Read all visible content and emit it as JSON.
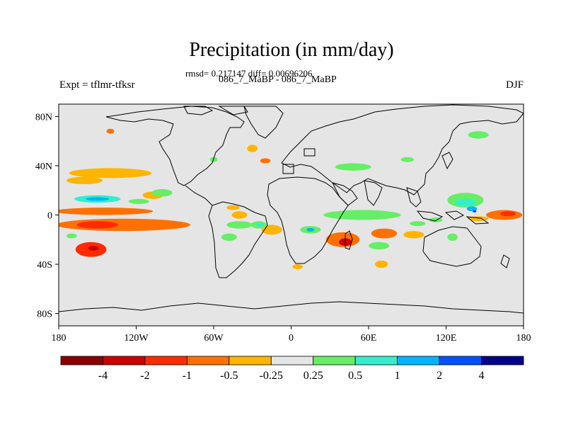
{
  "title": "Precipitation (in mm/day)",
  "subtitle": "rmsd= 0.217147 diff= 0.00696206",
  "case_label": "086_7_MaBP - 086_7_MaBP",
  "expt_label": "Expt = tflmr-tfksr",
  "season": "DJF",
  "map": {
    "projection": "cylindrical-equidistant",
    "lon_range": [
      -180,
      180
    ],
    "lat_range": [
      -90,
      90
    ],
    "y_ticks": [
      {
        "value": 80,
        "label": "80N"
      },
      {
        "value": 40,
        "label": "40N"
      },
      {
        "value": 0,
        "label": "0"
      },
      {
        "value": -40,
        "label": "40S"
      },
      {
        "value": -80,
        "label": "80S"
      }
    ],
    "x_ticks": [
      {
        "value": -180,
        "label": "180"
      },
      {
        "value": -120,
        "label": "120W"
      },
      {
        "value": -60,
        "label": "60W"
      },
      {
        "value": 0,
        "label": "0"
      },
      {
        "value": 60,
        "label": "60E"
      },
      {
        "value": 120,
        "label": "120E"
      },
      {
        "value": 180,
        "label": "180"
      }
    ],
    "background_color": "#e5e5e5"
  },
  "colorbar": {
    "colors": [
      "#8b0000",
      "#cc0000",
      "#ff2a00",
      "#ff7000",
      "#ffb400",
      "#e5e5e5",
      "#66ee66",
      "#33eecc",
      "#00b4ff",
      "#0050ff",
      "#00008b"
    ],
    "labels": [
      "-4",
      "-2",
      "-1",
      "-0.5",
      "-0.25",
      "0.25",
      "0.5",
      "1",
      "2",
      "4"
    ]
  },
  "chart_data": {
    "type": "heatmap",
    "variable": "Precipitation difference",
    "units": "mm/day",
    "levels": [
      -4,
      -2,
      -1,
      -0.5,
      -0.25,
      0.25,
      0.5,
      1,
      2,
      4
    ],
    "anomalies": [
      {
        "name": "north-pacific-dry-band",
        "lon": -140,
        "lat": 34,
        "dlon": 32,
        "dlat": 4,
        "level": -0.25
      },
      {
        "name": "north-pacific-dry-band-2",
        "lon": -160,
        "lat": 28,
        "dlon": 14,
        "dlat": 3,
        "level": -0.25
      },
      {
        "name": "east-pacific-dry-patch",
        "lon": -107,
        "lat": 16,
        "dlon": 8,
        "dlat": 3,
        "level": -0.25
      },
      {
        "name": "central-pacific-dry-band",
        "lon": -145,
        "lat": 3,
        "dlon": 38,
        "dlat": 3,
        "level": -0.5
      },
      {
        "name": "south-pacific-dry-band",
        "lon": -130,
        "lat": -8,
        "dlon": 52,
        "dlat": 5,
        "level": -0.5
      },
      {
        "name": "south-pacific-dry-core",
        "lon": -150,
        "lat": -8,
        "dlon": 16,
        "dlat": 3,
        "level": -1
      },
      {
        "name": "southwest-pacific-dry",
        "lon": -155,
        "lat": -28,
        "dlon": 12,
        "dlat": 6,
        "level": -1
      },
      {
        "name": "southwest-pacific-dry-core",
        "lon": -153,
        "lat": -27,
        "dlon": 4,
        "dlat": 2,
        "level": -2
      },
      {
        "name": "south-atlantic-dry",
        "lon": -15,
        "lat": -12,
        "dlon": 8,
        "dlat": 4,
        "level": -0.25
      },
      {
        "name": "atlantic-dry-patch",
        "lon": -40,
        "lat": 0,
        "dlon": 6,
        "dlat": 3,
        "level": -0.25
      },
      {
        "name": "mid-atlantic-dry",
        "lon": -45,
        "lat": 6,
        "dlon": 5,
        "dlat": 2,
        "level": -0.25
      },
      {
        "name": "mozambique-dry",
        "lon": 40,
        "lat": -20,
        "dlon": 13,
        "dlat": 6,
        "level": -0.5
      },
      {
        "name": "mozambique-dry-core",
        "lon": 42,
        "lat": -22,
        "dlon": 5,
        "dlat": 3,
        "level": -2
      },
      {
        "name": "south-indian-dry",
        "lon": 72,
        "lat": -15,
        "dlon": 10,
        "dlat": 4,
        "level": -0.5
      },
      {
        "name": "south-indian-dry-2",
        "lon": 95,
        "lat": -16,
        "dlon": 8,
        "dlat": 3,
        "level": -0.25
      },
      {
        "name": "southern-ocean-dry",
        "lon": 70,
        "lat": -40,
        "dlon": 5,
        "dlat": 3,
        "level": -0.25
      },
      {
        "name": "south-atlantic-dry-2",
        "lon": 5,
        "lat": -42,
        "dlon": 4,
        "dlat": 2,
        "level": -0.25
      },
      {
        "name": "western-pacific-dry",
        "lon": 165,
        "lat": 0,
        "dlon": 14,
        "dlat": 4,
        "level": -0.5
      },
      {
        "name": "western-pacific-dry-core",
        "lon": 168,
        "lat": 1,
        "dlon": 6,
        "dlat": 2,
        "level": -1
      },
      {
        "name": "western-pacific-dry-2",
        "lon": 145,
        "lat": -3,
        "dlon": 8,
        "dlat": 2,
        "level": -0.25
      },
      {
        "name": "north-atlantic-dry",
        "lon": -30,
        "lat": 54,
        "dlon": 4,
        "dlat": 3,
        "level": -0.25
      },
      {
        "name": "europe-dry",
        "lon": -20,
        "lat": 44,
        "dlon": 4,
        "dlat": 2,
        "level": -0.5
      },
      {
        "name": "alaska-dry",
        "lon": -140,
        "lat": 68,
        "dlon": 3,
        "dlat": 2,
        "level": -0.5
      },
      {
        "name": "north-pacific-wet",
        "lon": -150,
        "lat": 13,
        "dlon": 18,
        "dlat": 3,
        "level": 0.5
      },
      {
        "name": "north-pacific-wet-core",
        "lon": -150,
        "lat": 13,
        "dlon": 9,
        "dlat": 1.5,
        "level": 1
      },
      {
        "name": "north-pacific-wet-east",
        "lon": -118,
        "lat": 11,
        "dlon": 8,
        "dlat": 2,
        "level": 0.25
      },
      {
        "name": "indian-ocean-wet",
        "lon": 55,
        "lat": 0,
        "dlon": 30,
        "dlat": 4,
        "level": 0.25
      },
      {
        "name": "amazon-wet",
        "lon": -40,
        "lat": -8,
        "dlon": 10,
        "dlat": 3,
        "level": 0.25
      },
      {
        "name": "atlantic-wet",
        "lon": -25,
        "lat": -8,
        "dlon": 6,
        "dlat": 3,
        "level": 0.25
      },
      {
        "name": "atlantic-wet-core",
        "lon": -24,
        "lat": -8,
        "dlon": 3,
        "dlat": 1.5,
        "level": 0.5
      },
      {
        "name": "central-africa-wet",
        "lon": 15,
        "lat": -12,
        "dlon": 8,
        "dlat": 3,
        "level": 0.25
      },
      {
        "name": "central-africa-wet-core",
        "lon": 15,
        "lat": -12,
        "dlon": 3,
        "dlat": 1.5,
        "level": 1
      },
      {
        "name": "maritime-continent-wet",
        "lon": 135,
        "lat": 12,
        "dlon": 14,
        "dlat": 6,
        "level": 0.25
      },
      {
        "name": "maritime-continent-wet-core",
        "lon": 135,
        "lat": 10,
        "dlon": 8,
        "dlat": 3,
        "level": 0.5
      },
      {
        "name": "maritime-continent-wet-max",
        "lon": 140,
        "lat": 5,
        "dlon": 4,
        "dlat": 2,
        "level": 1
      },
      {
        "name": "maritime-continent-wet-peak",
        "lon": 142,
        "lat": 3,
        "dlon": 1.5,
        "dlat": 1,
        "level": 2
      },
      {
        "name": "west-pacific-wet",
        "lon": 112,
        "lat": -4,
        "dlon": 5,
        "dlat": 2,
        "level": 0.25
      },
      {
        "name": "indian-ocean-wet-2",
        "lon": 98,
        "lat": -7,
        "dlon": 6,
        "dlat": 2,
        "level": 0.25
      },
      {
        "name": "australia-wet",
        "lon": 125,
        "lat": -18,
        "dlon": 4,
        "dlat": 3,
        "level": 0.25
      },
      {
        "name": "south-africa-wet",
        "lon": 68,
        "lat": -25,
        "dlon": 8,
        "dlat": 3,
        "level": 0.25
      },
      {
        "name": "south-america-wet",
        "lon": -48,
        "lat": -18,
        "dlon": 6,
        "dlat": 3,
        "level": 0.25
      },
      {
        "name": "southeast-pacific-wet",
        "lon": -170,
        "lat": -17,
        "dlon": 4,
        "dlat": 2,
        "level": 0.25
      },
      {
        "name": "east-pacific-wet",
        "lon": -100,
        "lat": 18,
        "dlon": 8,
        "dlat": 3,
        "level": 0.25
      },
      {
        "name": "europe-wet",
        "lon": 48,
        "lat": 39,
        "dlon": 14,
        "dlat": 3,
        "level": 0.25
      },
      {
        "name": "north-america-wet",
        "lon": -60,
        "lat": 45,
        "dlon": 3,
        "dlat": 2,
        "level": 0.25
      },
      {
        "name": "china-wet",
        "lon": 90,
        "lat": 45,
        "dlon": 5,
        "dlat": 2,
        "level": 0.25
      },
      {
        "name": "north-pacific-wet-2",
        "lon": 145,
        "lat": 65,
        "dlon": 8,
        "dlat": 3,
        "level": 0.25
      }
    ]
  }
}
